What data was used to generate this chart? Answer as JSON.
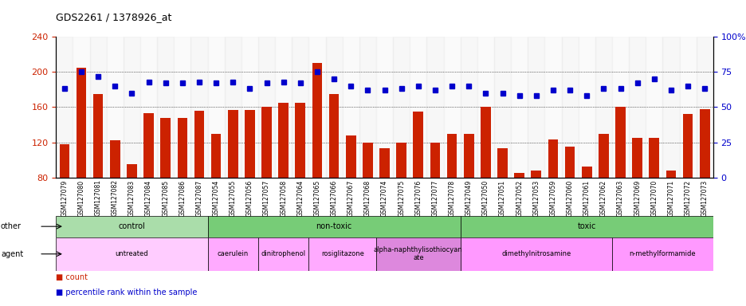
{
  "title": "GDS2261 / 1378926_at",
  "samples": [
    "GSM127079",
    "GSM127080",
    "GSM127081",
    "GSM127082",
    "GSM127083",
    "GSM127084",
    "GSM127085",
    "GSM127086",
    "GSM127087",
    "GSM127054",
    "GSM127055",
    "GSM127056",
    "GSM127057",
    "GSM127058",
    "GSM127064",
    "GSM127065",
    "GSM127066",
    "GSM127067",
    "GSM127068",
    "GSM127074",
    "GSM127075",
    "GSM127076",
    "GSM127077",
    "GSM127078",
    "GSM127049",
    "GSM127050",
    "GSM127051",
    "GSM127052",
    "GSM127053",
    "GSM127059",
    "GSM127060",
    "GSM127061",
    "GSM127062",
    "GSM127063",
    "GSM127069",
    "GSM127070",
    "GSM127071",
    "GSM127072",
    "GSM127073"
  ],
  "counts": [
    118,
    205,
    175,
    122,
    95,
    153,
    148,
    148,
    156,
    130,
    157,
    157,
    160,
    165,
    165,
    210,
    175,
    128,
    120,
    113,
    120,
    155,
    120,
    130,
    130,
    160,
    113,
    85,
    88,
    123,
    115,
    92,
    130,
    160,
    125,
    125,
    88,
    152,
    158
  ],
  "percentiles": [
    63,
    75,
    72,
    65,
    60,
    68,
    67,
    67,
    68,
    67,
    68,
    63,
    67,
    68,
    67,
    75,
    70,
    65,
    62,
    62,
    63,
    65,
    62,
    65,
    65,
    60,
    60,
    58,
    58,
    62,
    62,
    58,
    63,
    63,
    67,
    70,
    62,
    65,
    63
  ],
  "bar_color": "#cc2200",
  "dot_color": "#0000cc",
  "ymin": 80,
  "ymax": 240,
  "yticks": [
    80,
    120,
    160,
    200,
    240
  ],
  "y2ticks": [
    0,
    25,
    50,
    75,
    100
  ],
  "other_groups": [
    {
      "label": "control",
      "start": 0,
      "end": 9,
      "color": "#aaddaa"
    },
    {
      "label": "non-toxic",
      "start": 9,
      "end": 24,
      "color": "#77cc77"
    },
    {
      "label": "toxic",
      "start": 24,
      "end": 39,
      "color": "#77cc77"
    }
  ],
  "agent_groups": [
    {
      "label": "untreated",
      "start": 0,
      "end": 9,
      "color": "#ffccff"
    },
    {
      "label": "caerulein",
      "start": 9,
      "end": 12,
      "color": "#ffaaff"
    },
    {
      "label": "dinitrophenol",
      "start": 12,
      "end": 15,
      "color": "#ffaaff"
    },
    {
      "label": "rosiglitazone",
      "start": 15,
      "end": 19,
      "color": "#ffaaff"
    },
    {
      "label": "alpha-naphthylisothiocyan\nate",
      "start": 19,
      "end": 24,
      "color": "#dd88dd"
    },
    {
      "label": "dimethylnitrosamine",
      "start": 24,
      "end": 33,
      "color": "#ff99ff"
    },
    {
      "label": "n-methylformamide",
      "start": 33,
      "end": 39,
      "color": "#ff99ff"
    }
  ]
}
